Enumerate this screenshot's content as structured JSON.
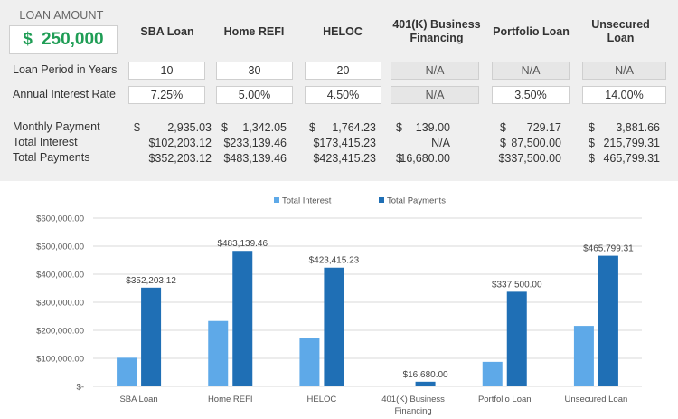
{
  "calculator": {
    "loan_amount_label": "LOAN AMOUNT",
    "loan_currency": "$",
    "loan_amount_value": "250,000",
    "columns": [
      "SBA Loan",
      "Home REFI",
      "HELOC",
      "401(K) Business Financing",
      "Portfolio Loan",
      "Unsecured Loan"
    ],
    "row_labels": {
      "loan_period": "Loan Period in Years",
      "interest_rate": "Annual Interest Rate",
      "monthly_payment": "Monthly Payment",
      "total_interest": "Total Interest",
      "total_payments": "Total Payments"
    },
    "loan_period": [
      "10",
      "30",
      "20",
      "N/A",
      "N/A",
      "N/A"
    ],
    "interest_rate": [
      "7.25%",
      "5.00%",
      "4.50%",
      "N/A",
      "3.50%",
      "14.00%"
    ],
    "monthly_payment": [
      {
        "cur": "$",
        "num": "2,935.03"
      },
      {
        "cur": "$",
        "num": "1,342.05"
      },
      {
        "cur": "$",
        "num": "1,764.23"
      },
      {
        "cur": "$",
        "num": "139.00"
      },
      {
        "cur": "$",
        "num": "729.17"
      },
      {
        "cur": "$",
        "num": "3,881.66"
      }
    ],
    "total_interest": [
      {
        "cur": "",
        "num": "$102,203.12"
      },
      {
        "cur": "",
        "num": "$233,139.46"
      },
      {
        "cur": "",
        "num": "$173,415.23"
      },
      {
        "cur": "",
        "num": "N/A"
      },
      {
        "cur": "$",
        "num": "87,500.00"
      },
      {
        "cur": "$",
        "num": "215,799.31"
      }
    ],
    "total_payments": [
      {
        "cur": "",
        "num": "$352,203.12"
      },
      {
        "cur": "",
        "num": "$483,139.46"
      },
      {
        "cur": "",
        "num": "$423,415.23"
      },
      {
        "cur": "$",
        "num": "16,680.00"
      },
      {
        "cur": "",
        "num": "$337,500.00"
      },
      {
        "cur": "$",
        "num": "465,799.31"
      }
    ]
  },
  "chart_data": {
    "type": "bar",
    "categories": [
      [
        "SBA Loan"
      ],
      [
        "Home REFI"
      ],
      [
        "HELOC"
      ],
      [
        "401(K) Business",
        "Financing"
      ],
      [
        "Portfolio Loan"
      ],
      [
        "Unsecured Loan"
      ]
    ],
    "series": [
      {
        "name": "Total Interest",
        "color": "#5ea9e8",
        "values": [
          102203.12,
          233139.46,
          173415.23,
          0,
          87500.0,
          215799.31
        ]
      },
      {
        "name": "Total Payments",
        "color": "#1f6fb5",
        "values": [
          352203.12,
          483139.46,
          423415.23,
          16680.0,
          337500.0,
          465799.31
        ]
      }
    ],
    "data_labels": [
      "$352,203.12",
      "$483,139.46",
      "$423,415.23",
      "$16,680.00",
      "$337,500.00",
      "$465,799.31"
    ],
    "yticks": [
      0,
      100000,
      200000,
      300000,
      400000,
      500000,
      600000
    ],
    "ytick_labels": [
      "$-",
      "$100,000.00",
      "$200,000.00",
      "$300,000.00",
      "$400,000.00",
      "$500,000.00",
      "$600,000.00"
    ],
    "ylim": [
      0,
      600000
    ],
    "legend_position": "top-center",
    "grid": true
  }
}
